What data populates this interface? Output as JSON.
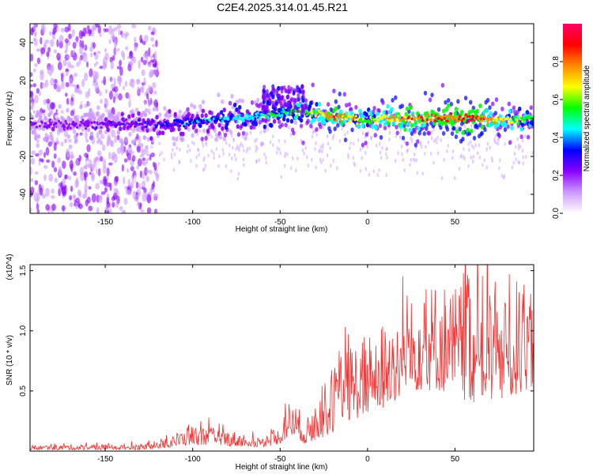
{
  "title": "C2E4.2025.314.01.45.R21",
  "chart_data": [
    {
      "type": "heatmap",
      "name": "spectrogram",
      "xlabel": "Height of straight line (km)",
      "ylabel": "Frequency (Hz)",
      "xlim": [
        -193,
        95
      ],
      "ylim": [
        -50,
        50
      ],
      "x_ticks": [
        -150,
        -100,
        -50,
        0,
        50
      ],
      "x_tick_labels": [
        "-150",
        "-100",
        "-50",
        "0",
        "50"
      ],
      "y_ticks": [
        -40,
        -20,
        0,
        20,
        40
      ],
      "y_tick_labels": [
        "-40",
        "-20",
        "0",
        "20",
        "40"
      ],
      "colorbar": {
        "label": "Normalized spectral amplitude",
        "range": [
          0,
          1
        ],
        "ticks": [
          0.0,
          0.2,
          0.4,
          0.6,
          0.8
        ],
        "tick_labels": [
          "0.0",
          "0.2",
          "0.4",
          "0.6",
          "0.8"
        ],
        "colors": [
          "#ffffff",
          "#cc99ff",
          "#8800ff",
          "#0000ff",
          "#00ffff",
          "#00ff00",
          "#ffff00",
          "#ff8800",
          "#ff0000",
          "#ff0066"
        ]
      },
      "ridge": {
        "x": [
          -193,
          -150,
          -120,
          -100,
          -80,
          -60,
          -50,
          -40,
          -30,
          -20,
          -10,
          0,
          10,
          20,
          40,
          60,
          80,
          95
        ],
        "freq": [
          -3,
          -3,
          -3,
          -2,
          0,
          1,
          3,
          4,
          3,
          1,
          0,
          -1,
          0,
          0,
          0,
          0,
          -1,
          0
        ],
        "amplitude": [
          0.2,
          0.25,
          0.3,
          0.38,
          0.45,
          0.5,
          0.55,
          0.6,
          0.65,
          0.9,
          0.75,
          0.6,
          0.75,
          0.85,
          0.9,
          0.95,
          0.7,
          0.6
        ]
      },
      "noise_region_x": [
        -193,
        -120
      ]
    },
    {
      "type": "line",
      "name": "snr",
      "xlabel": "Height of straight line (km)",
      "ylabel": "SNR (10 * v/v)",
      "scale_label": "(x10^4)",
      "xlim": [
        -193,
        95
      ],
      "ylim": [
        0,
        1.55
      ],
      "x_ticks": [
        -150,
        -100,
        -50,
        0,
        50
      ],
      "x_tick_labels": [
        "-150",
        "-100",
        "-50",
        "0",
        "50"
      ],
      "y_ticks": [
        0.5,
        1.0,
        1.5
      ],
      "y_tick_labels": [
        "0.5",
        "1.0",
        "1.5"
      ],
      "color": "#ee3333",
      "envelope": {
        "x": [
          -193,
          -130,
          -120,
          -100,
          -80,
          -60,
          -50,
          -45,
          -40,
          -35,
          -30,
          -20,
          -10,
          0,
          10,
          20,
          30,
          40,
          50,
          60,
          70,
          80,
          95
        ],
        "low": [
          0.01,
          0.01,
          0.02,
          0.05,
          0.04,
          0.03,
          0.06,
          0.12,
          0.1,
          0.05,
          0.08,
          0.15,
          0.25,
          0.3,
          0.35,
          0.45,
          0.5,
          0.5,
          0.45,
          0.4,
          0.4,
          0.4,
          0.55
        ],
        "high": [
          0.05,
          0.06,
          0.08,
          0.22,
          0.18,
          0.12,
          0.2,
          0.42,
          0.38,
          0.25,
          0.45,
          0.7,
          0.9,
          1.0,
          1.1,
          1.2,
          1.35,
          1.45,
          1.4,
          1.5,
          1.45,
          1.5,
          1.3
        ]
      }
    }
  ]
}
